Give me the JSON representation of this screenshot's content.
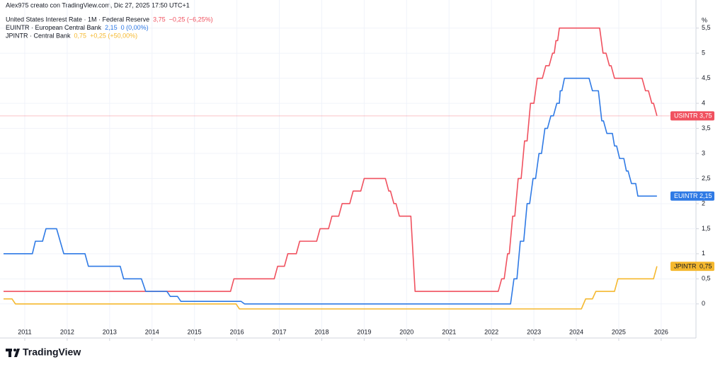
{
  "chart_data": {
    "type": "line",
    "title": "Alex975 creato con TradingView.com, Dic 27, 2025 17:50 UTC+1",
    "watermark": "TradingView",
    "y_label": "%",
    "step": false,
    "grid": true,
    "xlim": [
      2010.5,
      2026.82
    ],
    "ylim": [
      -0.68,
      5.75
    ],
    "xticks": [
      2011,
      2012,
      2013,
      2014,
      2015,
      2016,
      2017,
      2018,
      2019,
      2020,
      2021,
      2022,
      2023,
      2024,
      2025,
      2026
    ],
    "yticks": [
      0,
      {
        "value": 0.5,
        "label": "0,5"
      },
      1,
      {
        "value": 1.5,
        "label": "1,5"
      },
      2,
      {
        "value": 2.5,
        "label": "2,5"
      },
      3,
      {
        "value": 3.5,
        "label": "3,5"
      },
      4,
      {
        "value": 4.5,
        "label": "4,5"
      },
      5,
      {
        "value": 5.5,
        "label": "5,5"
      }
    ],
    "series": [
      {
        "name": "USINTR",
        "description": "United States Interest Rate · 1M · Federal Reserve",
        "color": "#f0515f",
        "last_label": "3,75",
        "change_label": "−0,25 (−6,25%)",
        "tag_text_color": "#ffffff",
        "price_line": true,
        "x": [
          2010.5,
          2015.85,
          2015.93,
          2016.88,
          2016.96,
          2017.12,
          2017.2,
          2017.4,
          2017.48,
          2017.88,
          2017.96,
          2018.16,
          2018.24,
          2018.4,
          2018.48,
          2018.66,
          2018.74,
          2018.92,
          2019,
          2019.5,
          2019.58,
          2019.62,
          2019.7,
          2019.75,
          2019.83,
          2020.1,
          2020.2,
          2022.16,
          2022.24,
          2022.3,
          2022.38,
          2022.42,
          2022.5,
          2022.55,
          2022.63,
          2022.7,
          2022.78,
          2022.84,
          2022.92,
          2023.0,
          2023.08,
          2023.2,
          2023.28,
          2023.36,
          2023.44,
          2023.48,
          2023.52,
          2023.56,
          2023.6,
          2024.55,
          2024.63,
          2024.7,
          2024.78,
          2024.82,
          2024.9,
          2025.55,
          2025.63,
          2025.7,
          2025.78,
          2025.82,
          2025.9
        ],
        "values": [
          0.25,
          0.25,
          0.5,
          0.5,
          0.75,
          0.75,
          1,
          1,
          1.25,
          1.25,
          1.5,
          1.5,
          1.75,
          1.75,
          2,
          2,
          2.25,
          2.25,
          2.5,
          2.5,
          2.25,
          2.25,
          2,
          2,
          1.75,
          1.75,
          0.25,
          0.25,
          0.5,
          0.5,
          1,
          1,
          1.75,
          1.75,
          2.5,
          2.5,
          3.25,
          3.25,
          4,
          4,
          4.5,
          4.5,
          4.75,
          4.75,
          5,
          5,
          5.25,
          5.25,
          5.5,
          5.5,
          5,
          5,
          4.75,
          4.75,
          4.5,
          4.5,
          4.25,
          4.25,
          4,
          4,
          3.75
        ]
      },
      {
        "name": "EUINTR",
        "description": "EUINTR · European Central Bank",
        "color": "#2f7ae5",
        "last_label": "2,15",
        "change_label": "0 (0,00%)",
        "tag_text_color": "#ffffff",
        "price_line": false,
        "x": [
          2010.5,
          2011.18,
          2011.25,
          2011.42,
          2011.5,
          2011.75,
          2011.92,
          2012.42,
          2012.5,
          2013.25,
          2013.33,
          2013.75,
          2013.85,
          2014.35,
          2014.43,
          2014.6,
          2014.68,
          2016.1,
          2016.18,
          2022.45,
          2022.53,
          2022.6,
          2022.68,
          2022.76,
          2022.84,
          2022.9,
          2022.98,
          2023.04,
          2023.12,
          2023.18,
          2023.26,
          2023.32,
          2023.4,
          2023.46,
          2023.54,
          2023.6,
          2023.62,
          2023.66,
          2023.72,
          2024.3,
          2024.38,
          2024.52,
          2024.6,
          2024.64,
          2024.72,
          2024.85,
          2024.9,
          2024.95,
          2025.02,
          2025.12,
          2025.18,
          2025.22,
          2025.3,
          2025.4,
          2025.45,
          2025.9
        ],
        "values": [
          1,
          1,
          1.25,
          1.25,
          1.5,
          1.5,
          1,
          1,
          0.75,
          0.75,
          0.5,
          0.5,
          0.25,
          0.25,
          0.15,
          0.15,
          0.05,
          0.05,
          0,
          0,
          0.5,
          0.5,
          1.25,
          1.25,
          2,
          2,
          2.5,
          2.5,
          3,
          3,
          3.5,
          3.5,
          3.75,
          3.75,
          4,
          4,
          4.25,
          4.25,
          4.5,
          4.5,
          4.25,
          4.25,
          3.65,
          3.65,
          3.4,
          3.4,
          3.15,
          3.15,
          2.9,
          2.9,
          2.65,
          2.65,
          2.4,
          2.4,
          2.15,
          2.15
        ]
      },
      {
        "name": "JPINTR",
        "description": "JPINTR · Central Bank",
        "color": "#f5b82e",
        "last_label": "0,75",
        "change_label": "+0,25 (+50,00%)",
        "tag_text_color": "#131722",
        "price_line": false,
        "x": [
          2010.5,
          2010.7,
          2010.78,
          2015.98,
          2016.06,
          2024.12,
          2024.22,
          2024.38,
          2024.46,
          2024.9,
          2024.98,
          2025.82,
          2025.9
        ],
        "values": [
          0.1,
          0.1,
          0,
          0,
          -0.1,
          -0.1,
          0.1,
          0.1,
          0.25,
          0.25,
          0.5,
          0.5,
          0.75
        ]
      }
    ]
  }
}
